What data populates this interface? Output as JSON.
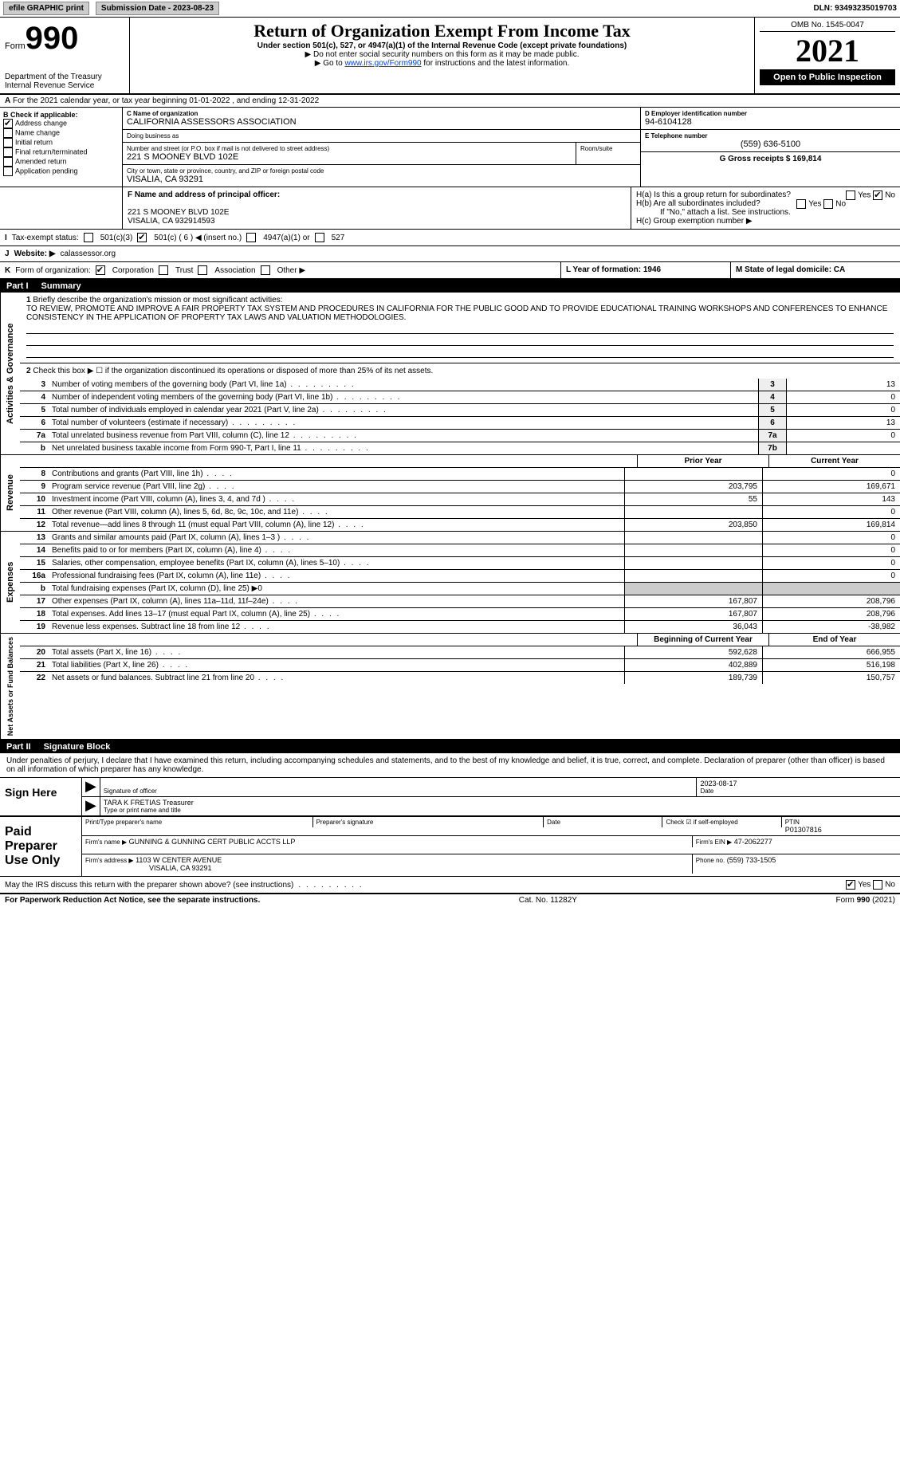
{
  "topbar": {
    "efile": "efile GRAPHIC print",
    "submission_label": "Submission Date - 2023-08-23",
    "dln_label": "DLN: 93493235019703"
  },
  "header": {
    "form_prefix": "Form",
    "form_number": "990",
    "title": "Return of Organization Exempt From Income Tax",
    "subtitle": "Under section 501(c), 527, or 4947(a)(1) of the Internal Revenue Code (except private foundations)",
    "note1": "▶ Do not enter social security numbers on this form as it may be made public.",
    "note2_prefix": "▶ Go to ",
    "note2_link": "www.irs.gov/Form990",
    "note2_suffix": " for instructions and the latest information.",
    "dept": "Department of the Treasury\nInternal Revenue Service",
    "omb": "OMB No. 1545-0047",
    "year": "2021",
    "open_public": "Open to Public Inspection"
  },
  "rowA": {
    "label_prefix": "A",
    "text": "For the 2021 calendar year, or tax year beginning 01-01-2022   , and ending 12-31-2022"
  },
  "sectionB": {
    "title": "B Check if applicable:",
    "opts": {
      "addr": "Address change",
      "name": "Name change",
      "init": "Initial return",
      "final": "Final return/terminated",
      "amend": "Amended return",
      "app": "Application pending"
    },
    "checked": {
      "addr": true
    }
  },
  "sectionC": {
    "name_label": "C Name of organization",
    "name": "CALIFORNIA ASSESSORS ASSOCIATION",
    "dba_label": "Doing business as",
    "dba": "",
    "street_label": "Number and street (or P.O. box if mail is not delivered to street address)",
    "room_label": "Room/suite",
    "street": "221 S MOONEY BLVD 102E",
    "city_label": "City or town, state or province, country, and ZIP or foreign postal code",
    "city": "VISALIA, CA  93291"
  },
  "sectionD": {
    "label": "D Employer identification number",
    "ein": "94-6104128"
  },
  "sectionE": {
    "label": "E Telephone number",
    "phone": "(559) 636-5100"
  },
  "sectionG": {
    "label": "G Gross receipts $ 169,814"
  },
  "sectionF": {
    "label": "F Name and address of principal officer:",
    "line1": "221 S MOONEY BLVD 102E",
    "line2": "VISALIA, CA  932914593"
  },
  "sectionH": {
    "ha": "H(a)  Is this a group return for subordinates?",
    "ha_yes": "Yes",
    "ha_no": "No",
    "hb": "H(b)  Are all subordinates included?",
    "hb_yes": "Yes",
    "hb_no": "No",
    "hb_note": "If \"No,\" attach a list. See instructions.",
    "hc": "H(c)  Group exemption number ▶"
  },
  "rowI": {
    "label": "I",
    "text": "Tax-exempt status:",
    "o1": "501(c)(3)",
    "o2": "501(c) ( 6 ) ◀ (insert no.)",
    "o3": "4947(a)(1) or",
    "o4": "527"
  },
  "rowJ": {
    "label": "J",
    "text_label": "Website: ▶",
    "website": "calassessor.org"
  },
  "rowK": {
    "label": "K",
    "text": "Form of organization:",
    "o1": "Corporation",
    "o2": "Trust",
    "o3": "Association",
    "o4": "Other ▶"
  },
  "rowL": {
    "label": "L Year of formation: 1946"
  },
  "rowM": {
    "label": "M State of legal domicile: CA"
  },
  "part1": {
    "num": "Part I",
    "title": "Summary",
    "l1_label": "1",
    "l1_text": "Briefly describe the organization's mission or most significant activities:",
    "l1_body": "TO REVIEW, PROMOTE AND IMPROVE A FAIR PROPERTY TAX SYSTEM AND PROCEDURES IN CALIFORNIA FOR THE PUBLIC GOOD AND TO PROVIDE EDUCATIONAL TRAINING WORKSHOPS AND CONFERENCES TO ENHANCE CONSISTENCY IN THE APPLICATION OF PROPERTY TAX LAWS AND VALUATION METHODOLOGIES.",
    "l2": "Check this box ▶ ☐ if the organization discontinued its operations or disposed of more than 25% of its net assets.",
    "lines_ag": [
      {
        "n": "3",
        "d": "Number of voting members of the governing body (Part VI, line 1a)",
        "box": "3",
        "v": "13"
      },
      {
        "n": "4",
        "d": "Number of independent voting members of the governing body (Part VI, line 1b)",
        "box": "4",
        "v": "0"
      },
      {
        "n": "5",
        "d": "Total number of individuals employed in calendar year 2021 (Part V, line 2a)",
        "box": "5",
        "v": "0"
      },
      {
        "n": "6",
        "d": "Total number of volunteers (estimate if necessary)",
        "box": "6",
        "v": "13"
      },
      {
        "n": "7a",
        "d": "Total unrelated business revenue from Part VIII, column (C), line 12",
        "box": "7a",
        "v": "0"
      },
      {
        "n": "b",
        "d": "Net unrelated business taxable income from Form 990-T, Part I, line 11",
        "box": "7b",
        "v": ""
      }
    ],
    "prior_year_label": "Prior Year",
    "current_year_label": "Current Year",
    "revenue": [
      {
        "n": "8",
        "d": "Contributions and grants (Part VIII, line 1h)",
        "p": "",
        "c": "0"
      },
      {
        "n": "9",
        "d": "Program service revenue (Part VIII, line 2g)",
        "p": "203,795",
        "c": "169,671"
      },
      {
        "n": "10",
        "d": "Investment income (Part VIII, column (A), lines 3, 4, and 7d )",
        "p": "55",
        "c": "143"
      },
      {
        "n": "11",
        "d": "Other revenue (Part VIII, column (A), lines 5, 6d, 8c, 9c, 10c, and 11e)",
        "p": "",
        "c": "0"
      },
      {
        "n": "12",
        "d": "Total revenue—add lines 8 through 11 (must equal Part VIII, column (A), line 12)",
        "p": "203,850",
        "c": "169,814"
      }
    ],
    "expenses": [
      {
        "n": "13",
        "d": "Grants and similar amounts paid (Part IX, column (A), lines 1–3 )",
        "p": "",
        "c": "0"
      },
      {
        "n": "14",
        "d": "Benefits paid to or for members (Part IX, column (A), line 4)",
        "p": "",
        "c": "0"
      },
      {
        "n": "15",
        "d": "Salaries, other compensation, employee benefits (Part IX, column (A), lines 5–10)",
        "p": "",
        "c": "0"
      },
      {
        "n": "16a",
        "d": "Professional fundraising fees (Part IX, column (A), line 11e)",
        "p": "",
        "c": "0"
      },
      {
        "n": "b",
        "d": "Total fundraising expenses (Part IX, column (D), line 25) ▶0",
        "p": null,
        "c": null
      },
      {
        "n": "17",
        "d": "Other expenses (Part IX, column (A), lines 11a–11d, 11f–24e)",
        "p": "167,807",
        "c": "208,796"
      },
      {
        "n": "18",
        "d": "Total expenses. Add lines 13–17 (must equal Part IX, column (A), line 25)",
        "p": "167,807",
        "c": "208,796"
      },
      {
        "n": "19",
        "d": "Revenue less expenses. Subtract line 18 from line 12",
        "p": "36,043",
        "c": "-38,982"
      }
    ],
    "boy_label": "Beginning of Current Year",
    "eoy_label": "End of Year",
    "netassets": [
      {
        "n": "20",
        "d": "Total assets (Part X, line 16)",
        "p": "592,628",
        "c": "666,955"
      },
      {
        "n": "21",
        "d": "Total liabilities (Part X, line 26)",
        "p": "402,889",
        "c": "516,198"
      },
      {
        "n": "22",
        "d": "Net assets or fund balances. Subtract line 21 from line 20",
        "p": "189,739",
        "c": "150,757"
      }
    ],
    "side_ag": "Activities & Governance",
    "side_rev": "Revenue",
    "side_exp": "Expenses",
    "side_na": "Net Assets or Fund Balances"
  },
  "part2": {
    "num": "Part II",
    "title": "Signature Block",
    "decl": "Under penalties of perjury, I declare that I have examined this return, including accompanying schedules and statements, and to the best of my knowledge and belief, it is true, correct, and complete. Declaration of preparer (other than officer) is based on all information of which preparer has any knowledge.",
    "sign_here": "Sign Here",
    "sig_officer_lbl": "Signature of officer",
    "date_lbl": "Date",
    "sig_date": "2023-08-17",
    "officer_name": "TARA K FRETIAS  Treasurer",
    "type_name_lbl": "Type or print name and title",
    "paid_prep": "Paid Preparer Use Only",
    "print_name_lbl": "Print/Type preparer's name",
    "prep_sig_lbl": "Preparer's signature",
    "check_self_lbl": "Check ☑ if self-employed",
    "ptin_lbl": "PTIN",
    "ptin": "P01307816",
    "firm_name_lbl": "Firm's name    ▶",
    "firm_name": "GUNNING & GUNNING CERT PUBLIC ACCTS LLP",
    "firm_ein_lbl": "Firm's EIN ▶",
    "firm_ein": "47-2062277",
    "firm_addr_lbl": "Firm's address ▶",
    "firm_addr1": "1103 W CENTER AVENUE",
    "firm_addr2": "VISALIA, CA  93291",
    "phone_lbl": "Phone no.",
    "phone": "(559) 733-1505",
    "discuss": "May the IRS discuss this return with the preparer shown above? (see instructions)",
    "discuss_yes": "Yes",
    "discuss_no": "No"
  },
  "footer": {
    "left": "For Paperwork Reduction Act Notice, see the separate instructions.",
    "mid": "Cat. No. 11282Y",
    "right": "Form 990 (2021)"
  },
  "colors": {
    "link": "#0044dd",
    "black": "#000000"
  }
}
